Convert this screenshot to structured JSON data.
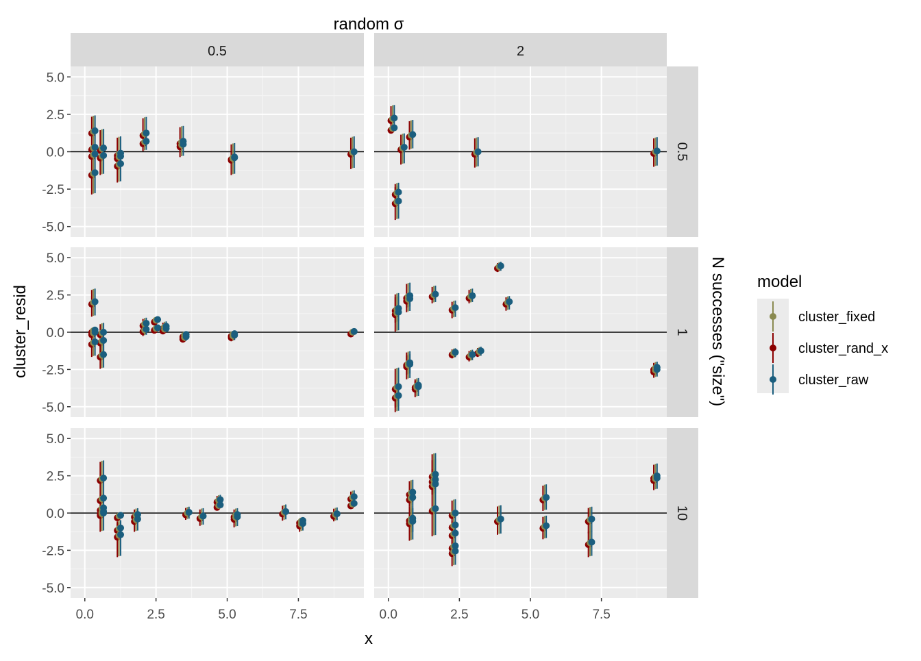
{
  "chart_data": {
    "type": "scatter",
    "title": "random σ",
    "xlabel": "x",
    "ylabel": "cluster_resid",
    "facet_col_label": "random σ",
    "facet_row_label": "N successes (\"size\")",
    "facet_cols": [
      "0.5",
      "2"
    ],
    "facet_rows": [
      "0.5",
      "1",
      "10"
    ],
    "xlim": [
      -0.5,
      9.8
    ],
    "ylim": [
      -5.7,
      5.7
    ],
    "x_ticks": [
      "0.0",
      "2.5",
      "5.0",
      "7.5"
    ],
    "x_tick_values": [
      0,
      2.5,
      5,
      7.5
    ],
    "y_ticks": [
      "-5.0",
      "-2.5",
      "0.0",
      "2.5",
      "5.0"
    ],
    "y_tick_values": [
      -5,
      -2.5,
      0,
      2.5,
      5
    ],
    "reference_line_y": 0,
    "grid": true,
    "legend": {
      "title": "model",
      "placement": "right",
      "entries": [
        {
          "name": "cluster_fixed",
          "color": "#8a8a50"
        },
        {
          "name": "cluster_rand_x",
          "color": "#8b0000"
        },
        {
          "name": "cluster_raw",
          "color": "#1b5e7e"
        }
      ]
    },
    "panels": [
      {
        "row": 0,
        "col": 0,
        "points": [
          [
            0.3,
            1.35,
            2.4,
            0.3
          ],
          [
            0.3,
            -1.45,
            -0.4,
            -2.8
          ],
          [
            0.3,
            0.25,
            0.3,
            0.2
          ],
          [
            0.3,
            -0.2,
            0.2,
            -0.25
          ],
          [
            0.6,
            0.2,
            1.5,
            0.0
          ],
          [
            0.6,
            -0.3,
            0.0,
            -1.5
          ],
          [
            1.2,
            -0.15,
            1.0,
            -0.2
          ],
          [
            1.2,
            -0.85,
            -0.3,
            -2.0
          ],
          [
            1.2,
            -0.35,
            -0.3,
            -0.4
          ],
          [
            2.1,
            1.2,
            2.3,
            0.1
          ],
          [
            2.1,
            0.65,
            0.7,
            0.6
          ],
          [
            3.4,
            0.65,
            1.7,
            -0.3
          ],
          [
            3.4,
            0.45,
            0.5,
            0.4
          ],
          [
            5.2,
            -0.45,
            0.55,
            -1.5
          ],
          [
            5.2,
            -0.4,
            -0.35,
            -0.45
          ],
          [
            9.4,
            -0.05,
            1.0,
            -1.1
          ]
        ]
      },
      {
        "row": 0,
        "col": 1,
        "points": [
          [
            0.15,
            2.2,
            3.1,
            1.4
          ],
          [
            0.15,
            1.55,
            1.6,
            1.5
          ],
          [
            0.3,
            -3.35,
            -2.3,
            -4.5
          ],
          [
            0.3,
            -2.75,
            -2.1,
            -3.4
          ],
          [
            0.5,
            0.25,
            1.2,
            -0.8
          ],
          [
            0.8,
            1.1,
            2.1,
            0.2
          ],
          [
            3.1,
            -0.05,
            0.95,
            -1.0
          ],
          [
            9.4,
            0.0,
            0.95,
            -0.95
          ]
        ]
      },
      {
        "row": 1,
        "col": 0,
        "points": [
          [
            0.3,
            2.0,
            2.9,
            1.1
          ],
          [
            0.3,
            -0.7,
            0.0,
            -1.6
          ],
          [
            0.3,
            0.1,
            0.2,
            0.0
          ],
          [
            0.3,
            -0.05,
            0.0,
            -0.1
          ],
          [
            0.6,
            -0.6,
            0.6,
            -1.8
          ],
          [
            0.6,
            -1.55,
            -0.5,
            -2.4
          ],
          [
            0.6,
            -0.05,
            0.0,
            -0.1
          ],
          [
            2.1,
            0.55,
            0.95,
            0.15
          ],
          [
            2.1,
            0.15,
            0.5,
            -0.2
          ],
          [
            2.5,
            0.8,
            1.0,
            0.6
          ],
          [
            2.5,
            0.25,
            0.3,
            0.2
          ],
          [
            2.8,
            0.35,
            0.7,
            0.0
          ],
          [
            2.8,
            0.2,
            0.25,
            0.15
          ],
          [
            3.5,
            -0.35,
            -0.1,
            -0.6
          ],
          [
            3.5,
            -0.2,
            -0.15,
            -0.25
          ],
          [
            5.2,
            -0.25,
            0.05,
            -0.55
          ],
          [
            5.2,
            -0.15,
            -0.1,
            -0.2
          ],
          [
            9.4,
            0.0,
            0.1,
            -0.1
          ]
        ]
      },
      {
        "row": 1,
        "col": 1,
        "points": [
          [
            0.3,
            1.55,
            2.4,
            0.7
          ],
          [
            0.3,
            1.3,
            2.6,
            0.1
          ],
          [
            0.3,
            -4.3,
            -3.5,
            -5.3
          ],
          [
            0.3,
            -3.7,
            -2.4,
            -5.0
          ],
          [
            0.7,
            2.4,
            3.3,
            1.7
          ],
          [
            0.7,
            2.2,
            2.6,
            1.4
          ],
          [
            0.7,
            -2.1,
            -1.5,
            -2.8
          ],
          [
            0.7,
            -2.2,
            -1.3,
            -3.1
          ],
          [
            1.0,
            -3.7,
            -3.1,
            -4.3
          ],
          [
            1.0,
            -3.6,
            -3.2,
            -4.0
          ],
          [
            1.6,
            2.5,
            3.1,
            2.0
          ],
          [
            2.3,
            1.6,
            2.1,
            1.0
          ],
          [
            2.3,
            -1.4,
            -1.1,
            -1.7
          ],
          [
            2.9,
            2.4,
            2.9,
            2.0
          ],
          [
            2.9,
            -1.55,
            -1.2,
            -1.9
          ],
          [
            3.2,
            -1.3,
            -1.0,
            -1.6
          ],
          [
            3.9,
            4.4,
            4.7,
            4.1
          ],
          [
            4.2,
            2.0,
            2.4,
            1.5
          ],
          [
            9.4,
            -2.55,
            -2.0,
            -3.0
          ],
          [
            9.4,
            -2.4,
            -2.2,
            -2.6
          ]
        ]
      },
      {
        "row": 2,
        "col": 0,
        "points": [
          [
            0.6,
            2.3,
            3.5,
            1.1
          ],
          [
            0.6,
            0.95,
            1.0,
            0.9
          ],
          [
            0.6,
            0.3,
            0.4,
            0.2
          ],
          [
            0.6,
            0.05,
            0.1,
            0.0
          ],
          [
            0.6,
            -0.05,
            1.0,
            -1.2
          ],
          [
            1.2,
            -1.05,
            -0.5,
            -1.6
          ],
          [
            1.2,
            -1.5,
            -0.6,
            -2.9
          ],
          [
            1.2,
            -0.2,
            0.0,
            -0.4
          ],
          [
            1.8,
            -0.45,
            0.3,
            -1.2
          ],
          [
            1.8,
            -0.15,
            0.0,
            -0.3
          ],
          [
            3.6,
            0.0,
            0.4,
            -0.4
          ],
          [
            4.1,
            -0.25,
            0.3,
            -0.8
          ],
          [
            4.7,
            0.85,
            1.2,
            0.5
          ],
          [
            4.7,
            0.5,
            0.6,
            0.4
          ],
          [
            5.3,
            -0.3,
            0.3,
            -0.9
          ],
          [
            5.3,
            -0.15,
            0.0,
            -0.3
          ],
          [
            7.0,
            0.05,
            0.55,
            -0.45
          ],
          [
            7.6,
            -0.75,
            -0.3,
            -1.2
          ],
          [
            7.6,
            -0.55,
            -0.4,
            -0.7
          ],
          [
            8.8,
            -0.1,
            0.35,
            -0.5
          ],
          [
            9.4,
            1.05,
            1.5,
            0.6
          ],
          [
            9.4,
            0.6,
            0.7,
            0.5
          ]
        ]
      },
      {
        "row": 2,
        "col": 1,
        "points": [
          [
            0.8,
            1.35,
            2.2,
            0.5
          ],
          [
            0.8,
            1.0,
            1.3,
            0.7
          ],
          [
            0.8,
            -0.6,
            0.3,
            -1.8
          ],
          [
            0.8,
            -0.4,
            0.5,
            -1.3
          ],
          [
            1.6,
            2.55,
            3.6,
            1.5
          ],
          [
            1.6,
            2.2,
            3.0,
            1.3
          ],
          [
            1.6,
            1.9,
            2.5,
            1.3
          ],
          [
            1.6,
            0.25,
            4.0,
            -1.5
          ],
          [
            2.3,
            -0.05,
            0.9,
            -1.0
          ],
          [
            2.3,
            -0.85,
            -0.6,
            -1.1
          ],
          [
            2.3,
            -1.4,
            -0.5,
            -2.2
          ],
          [
            2.3,
            -2.25,
            -2.0,
            -2.5
          ],
          [
            2.3,
            -2.6,
            -1.6,
            -3.5
          ],
          [
            3.9,
            -0.45,
            0.5,
            -1.4
          ],
          [
            5.5,
            1.0,
            1.9,
            0.2
          ],
          [
            5.5,
            -0.9,
            -0.2,
            -1.7
          ],
          [
            7.1,
            -0.45,
            0.4,
            -1.3
          ],
          [
            7.1,
            -2.0,
            -1.2,
            -2.9
          ],
          [
            9.4,
            2.45,
            3.3,
            1.6
          ],
          [
            9.4,
            2.3,
            2.5,
            2.1
          ]
        ]
      }
    ]
  }
}
